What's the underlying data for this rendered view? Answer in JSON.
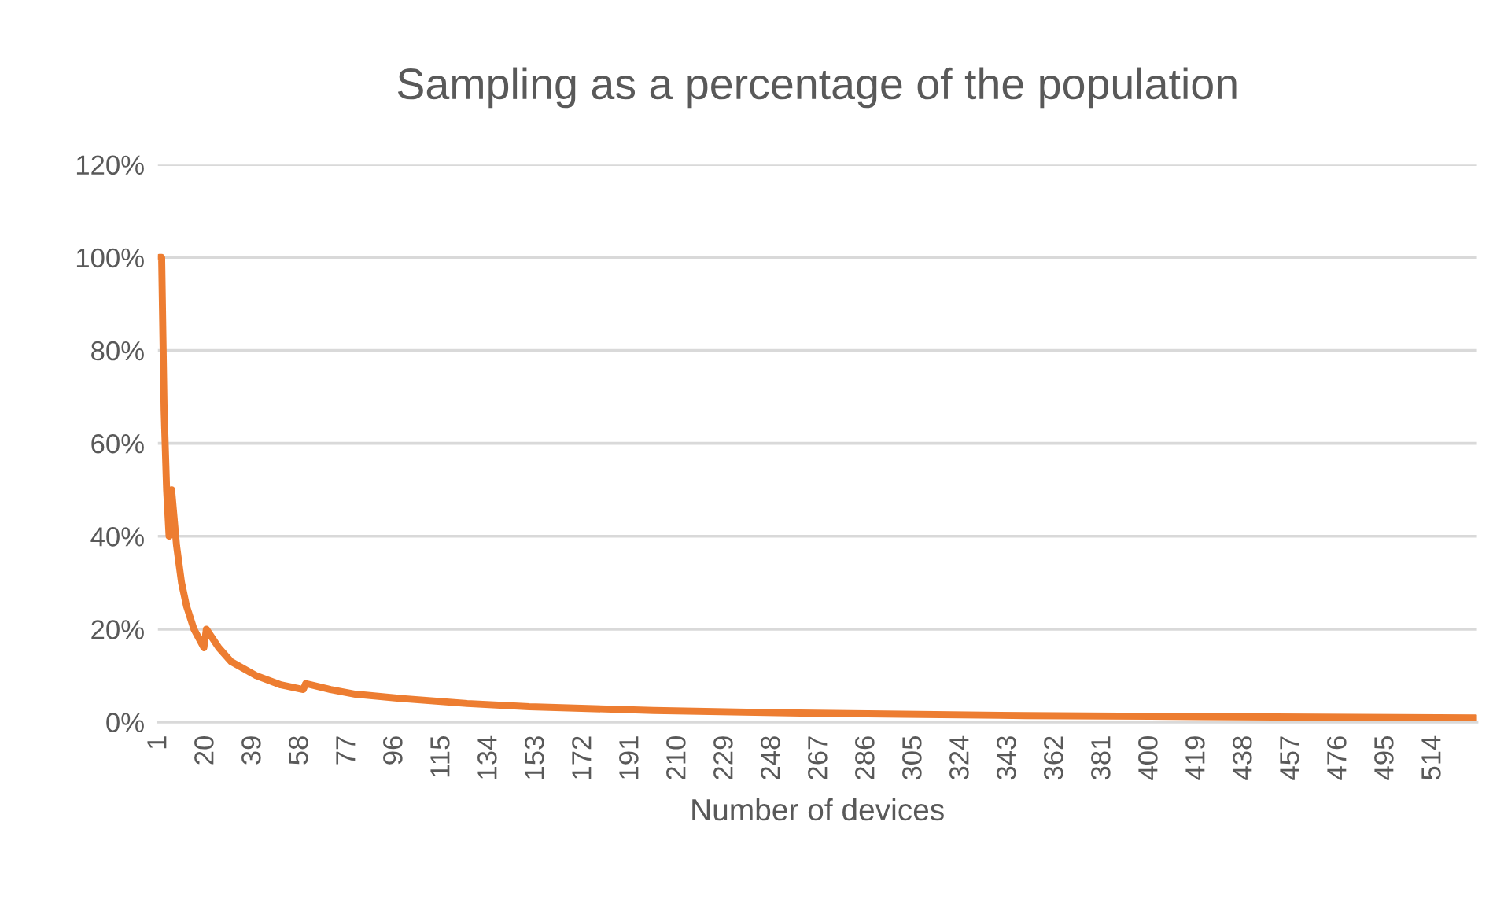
{
  "chart_data": {
    "type": "line",
    "title": "Sampling as a percentage of the population",
    "xlabel": "Number of devices",
    "x": [
      1,
      2,
      3,
      4,
      5,
      6,
      8,
      10,
      12,
      15,
      19,
      20,
      25,
      30,
      40,
      50,
      59,
      60,
      70,
      80,
      100,
      125,
      150,
      200,
      250,
      300,
      350,
      400,
      450,
      500,
      531
    ],
    "series": [
      {
        "color": "#ed7d31",
        "values": [
          100,
          100,
          67,
          50,
          40,
          50,
          38,
          30,
          25,
          20,
          16,
          20,
          16,
          13,
          10,
          8,
          7,
          8.3,
          7,
          6,
          5,
          4,
          3.3,
          2.5,
          2,
          1.7,
          1.4,
          1.25,
          1.1,
          1,
          0.9
        ]
      }
    ],
    "xlim": [
      0.5,
      531.5
    ],
    "xticks": [
      1,
      20,
      39,
      58,
      77,
      96,
      115,
      134,
      153,
      172,
      191,
      210,
      229,
      248,
      267,
      286,
      305,
      324,
      343,
      362,
      381,
      400,
      419,
      438,
      457,
      476,
      495,
      514
    ],
    "ylim": [
      0,
      120
    ],
    "yticks": [
      {
        "value": 0,
        "label": "0%"
      },
      {
        "value": 20,
        "label": "20%"
      },
      {
        "value": 40,
        "label": "40%"
      },
      {
        "value": 60,
        "label": "60%"
      },
      {
        "value": 80,
        "label": "80%"
      },
      {
        "value": 100,
        "label": "100%"
      },
      {
        "value": 120,
        "label": "120%"
      }
    ],
    "grid": "y",
    "legend": false,
    "marker": "none",
    "line_style": "solid"
  }
}
